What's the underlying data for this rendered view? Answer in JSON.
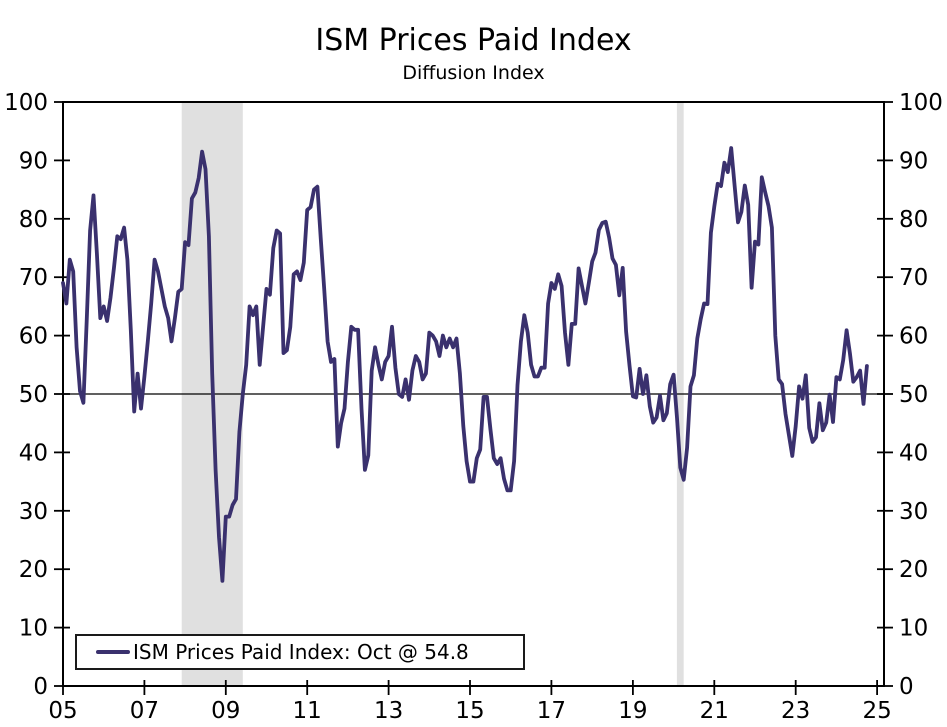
{
  "header": {
    "title": "ISM Prices Paid Index",
    "subtitle": "Diffusion Index"
  },
  "legend": {
    "label": "ISM Prices Paid Index: Oct @ 54.8"
  },
  "colors": {
    "series": "#3A316E",
    "recession": "#E0E0E0",
    "axis": "#000000",
    "background": "#FFFFFF"
  },
  "chart_data": {
    "type": "line",
    "title": "ISM Prices Paid Index",
    "subtitle": "Diffusion Index",
    "xlabel": "",
    "ylabel": "Diffusion Index",
    "ylim": [
      0,
      100
    ],
    "xlim": [
      2005,
      2025.17
    ],
    "grid": false,
    "legend_position": "bottom-left",
    "y_ticks": [
      0,
      10,
      20,
      30,
      40,
      50,
      60,
      70,
      80,
      90,
      100
    ],
    "x_tick_years": [
      2005,
      2007,
      2009,
      2011,
      2013,
      2015,
      2017,
      2019,
      2021,
      2023,
      2025
    ],
    "x_tick_labels": [
      "05",
      "07",
      "09",
      "11",
      "13",
      "15",
      "17",
      "19",
      "21",
      "23",
      "25"
    ],
    "reference_line": 50,
    "recession_bands": [
      {
        "start": 2007.917,
        "end": 2009.417
      },
      {
        "start": 2020.083,
        "end": 2020.25
      }
    ],
    "series": [
      {
        "name": "ISM Prices Paid Index",
        "legend_label": "ISM Prices Paid Index: Oct @ 54.8",
        "frequency": "monthly",
        "start_year": 2005,
        "start_month": 1,
        "last_point": {
          "label": "Oct",
          "value": 54.8
        },
        "values": [
          69.0,
          65.5,
          73.0,
          71.0,
          58.0,
          50.5,
          48.5,
          62.5,
          78.0,
          84.0,
          74.0,
          63.0,
          65.0,
          62.5,
          66.5,
          71.5,
          77.0,
          76.5,
          78.5,
          73.0,
          61.0,
          47.0,
          53.5,
          47.5,
          53.0,
          59.0,
          65.5,
          73.0,
          71.0,
          68.0,
          65.0,
          63.0,
          59.0,
          63.0,
          67.5,
          68.0,
          76.0,
          75.5,
          83.5,
          84.5,
          87.0,
          91.5,
          88.5,
          77.0,
          53.5,
          37.0,
          25.5,
          18.0,
          29.0,
          29.0,
          31.0,
          32.0,
          43.5,
          50.0,
          55.0,
          65.0,
          63.5,
          65.0,
          55.0,
          61.5,
          68.0,
          67.0,
          75.0,
          78.0,
          77.5,
          57.0,
          57.5,
          61.5,
          70.5,
          71.0,
          69.5,
          72.5,
          81.5,
          82.0,
          85.0,
          85.5,
          76.5,
          68.0,
          59.0,
          55.5,
          56.0,
          41.0,
          45.0,
          47.5,
          55.5,
          61.5,
          61.0,
          61.0,
          47.5,
          37.0,
          39.5,
          54.0,
          58.0,
          55.0,
          52.5,
          55.5,
          56.5,
          61.5,
          54.5,
          50.0,
          49.5,
          52.5,
          49.0,
          54.0,
          56.5,
          55.5,
          52.5,
          53.5,
          60.5,
          60.0,
          59.0,
          56.5,
          60.0,
          58.0,
          59.5,
          58.0,
          59.5,
          53.5,
          44.5,
          38.5,
          35.0,
          35.0,
          39.0,
          40.5,
          49.5,
          49.5,
          44.0,
          39.0,
          38.0,
          39.0,
          35.5,
          33.5,
          33.5,
          38.5,
          51.5,
          59.0,
          63.5,
          60.5,
          55.0,
          53.0,
          53.0,
          54.5,
          54.5,
          65.5,
          69.0,
          68.0,
          70.5,
          68.5,
          60.5,
          55.0,
          62.0,
          62.0,
          71.5,
          68.5,
          65.5,
          69.0,
          72.7,
          74.2,
          78.1,
          79.3,
          79.5,
          76.8,
          73.2,
          72.1,
          66.9,
          71.6,
          60.7,
          54.9,
          49.6,
          49.4,
          54.3,
          50.0,
          53.2,
          47.9,
          45.1,
          46.0,
          49.7,
          45.5,
          46.7,
          51.7,
          53.3,
          45.9,
          37.4,
          35.3,
          40.8,
          51.3,
          53.2,
          59.5,
          62.8,
          65.5,
          65.4,
          77.6,
          82.1,
          86.0,
          85.6,
          89.6,
          88.0,
          92.1,
          85.7,
          79.4,
          81.2,
          85.7,
          82.4,
          68.2,
          76.1,
          75.6,
          87.1,
          84.6,
          82.2,
          78.5,
          60.0,
          52.5,
          51.7,
          46.6,
          43.0,
          39.4,
          44.5,
          51.3,
          49.2,
          53.2,
          44.2,
          41.8,
          42.6,
          48.4,
          43.8,
          45.1,
          49.9,
          45.2,
          52.9,
          52.5,
          55.8,
          60.9,
          57.0,
          52.1,
          52.9,
          54.0,
          48.3,
          54.8
        ]
      }
    ]
  }
}
